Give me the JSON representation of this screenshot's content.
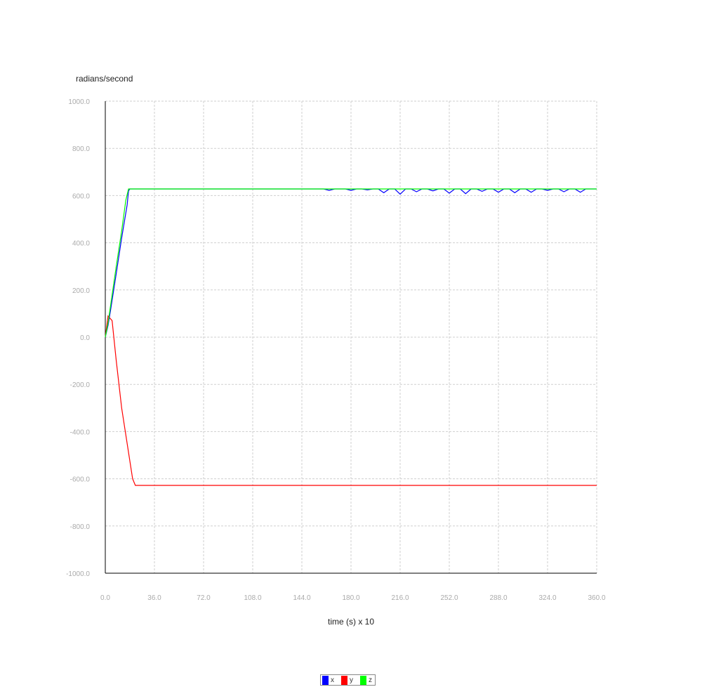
{
  "chart_data": {
    "type": "line",
    "ylabel": "radians/second",
    "xlabel": "time (s) x 10",
    "xlim": [
      0,
      360
    ],
    "ylim": [
      -1000,
      1000
    ],
    "x_ticks": [
      "0.0",
      "36.0",
      "72.0",
      "108.0",
      "144.0",
      "180.0",
      "216.0",
      "252.0",
      "288.0",
      "324.0",
      "360.0"
    ],
    "y_ticks": [
      "1000.0",
      "800.0",
      "600.0",
      "400.0",
      "200.0",
      "0.0",
      "-200.0",
      "-400.0",
      "-600.0",
      "-800.0",
      "-1000.0"
    ],
    "grid": true,
    "legend_position": "bottom-center",
    "series": [
      {
        "name": "x",
        "color": "#0000ff",
        "points": [
          [
            0,
            0
          ],
          [
            2,
            50
          ],
          [
            4,
            120
          ],
          [
            8,
            270
          ],
          [
            12,
            420
          ],
          [
            16,
            560
          ],
          [
            17,
            620
          ],
          [
            18,
            628
          ],
          [
            160,
            628
          ],
          [
            164,
            622
          ],
          [
            168,
            628
          ],
          [
            176,
            628
          ],
          [
            180,
            622
          ],
          [
            184,
            628
          ],
          [
            188,
            628
          ],
          [
            192,
            624
          ],
          [
            196,
            628
          ],
          [
            200,
            628
          ],
          [
            204,
            612
          ],
          [
            208,
            628
          ],
          [
            212,
            628
          ],
          [
            216,
            606
          ],
          [
            220,
            628
          ],
          [
            224,
            628
          ],
          [
            228,
            616
          ],
          [
            232,
            628
          ],
          [
            236,
            628
          ],
          [
            240,
            620
          ],
          [
            244,
            628
          ],
          [
            248,
            628
          ],
          [
            252,
            610
          ],
          [
            256,
            628
          ],
          [
            260,
            628
          ],
          [
            264,
            608
          ],
          [
            268,
            628
          ],
          [
            272,
            628
          ],
          [
            276,
            618
          ],
          [
            280,
            628
          ],
          [
            284,
            628
          ],
          [
            288,
            614
          ],
          [
            292,
            628
          ],
          [
            296,
            628
          ],
          [
            300,
            612
          ],
          [
            304,
            628
          ],
          [
            308,
            628
          ],
          [
            312,
            614
          ],
          [
            316,
            628
          ],
          [
            320,
            628
          ],
          [
            324,
            622
          ],
          [
            328,
            628
          ],
          [
            332,
            628
          ],
          [
            336,
            616
          ],
          [
            340,
            628
          ],
          [
            344,
            628
          ],
          [
            348,
            614
          ],
          [
            352,
            628
          ],
          [
            356,
            628
          ],
          [
            360,
            628
          ]
        ]
      },
      {
        "name": "y",
        "color": "#ff0000",
        "points": [
          [
            0,
            0
          ],
          [
            2,
            90
          ],
          [
            5,
            70
          ],
          [
            8,
            -100
          ],
          [
            12,
            -300
          ],
          [
            16,
            -450
          ],
          [
            20,
            -600
          ],
          [
            22,
            -628
          ],
          [
            360,
            -628
          ]
        ]
      },
      {
        "name": "z",
        "color": "#00ff00",
        "points": [
          [
            0,
            0
          ],
          [
            2,
            60
          ],
          [
            4,
            140
          ],
          [
            8,
            300
          ],
          [
            12,
            450
          ],
          [
            15,
            580
          ],
          [
            17,
            628
          ],
          [
            360,
            628
          ]
        ]
      }
    ]
  }
}
